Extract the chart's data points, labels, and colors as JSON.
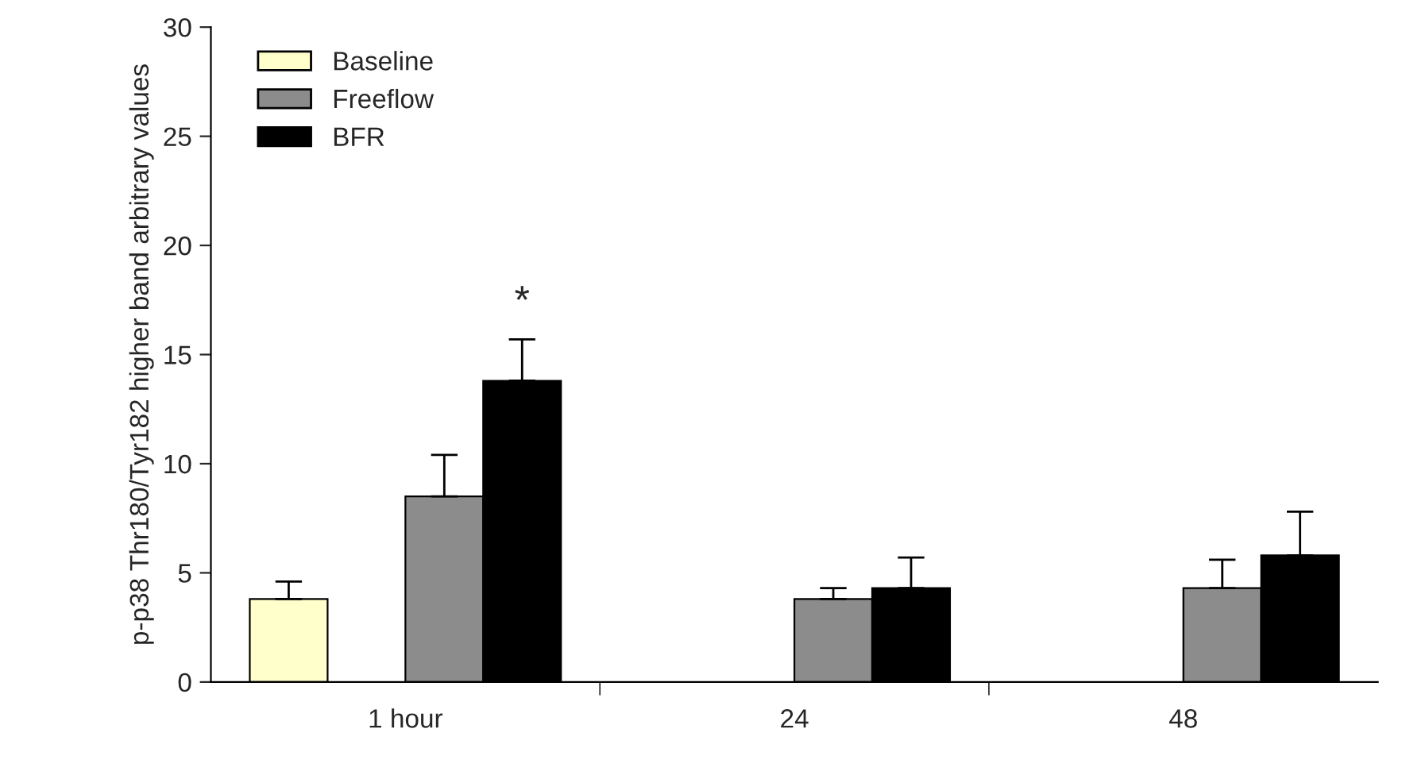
{
  "chart_data": {
    "type": "bar",
    "ylabel": "p-p38 Thr180/Tyr182 higher band arbitrary values",
    "categories": [
      "1 hour",
      "24",
      "48"
    ],
    "series": [
      {
        "name": "Baseline",
        "color": "#ffffcc",
        "values": [
          3.8,
          null,
          null
        ],
        "errors": [
          [
            3.8,
            4.6
          ],
          null,
          null
        ]
      },
      {
        "name": "Freeflow",
        "color": "#8c8c8c",
        "values": [
          8.5,
          3.8,
          4.3
        ],
        "errors": [
          [
            8.5,
            10.4
          ],
          [
            3.8,
            4.3
          ],
          [
            4.3,
            5.6
          ]
        ]
      },
      {
        "name": "BFR",
        "color": "#000000",
        "values": [
          13.8,
          4.3,
          5.8
        ],
        "errors": [
          [
            13.8,
            15.7
          ],
          [
            4.3,
            5.7
          ],
          [
            5.8,
            7.8
          ]
        ]
      }
    ],
    "annotations": [
      "*"
    ],
    "ylim": [
      0,
      30
    ],
    "yticks": [
      0,
      5,
      10,
      15,
      20,
      25,
      30
    ],
    "grid": false,
    "legend": "top left"
  }
}
